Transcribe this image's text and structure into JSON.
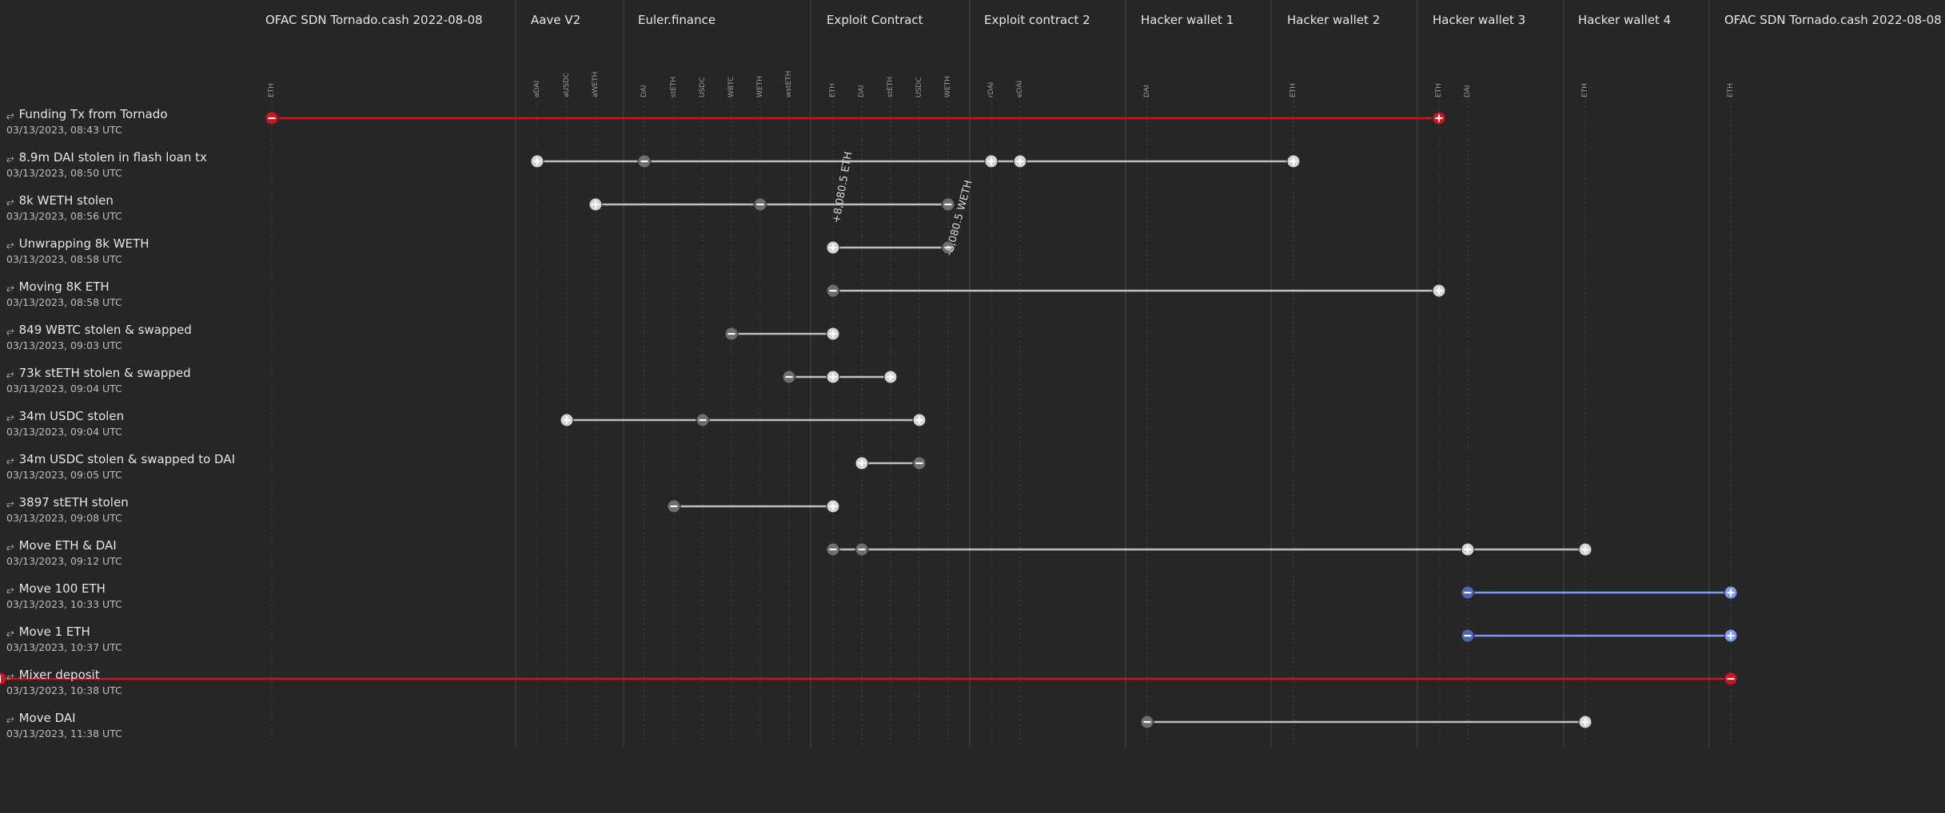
{
  "colors": {
    "background": "#262626",
    "grey_line": "#bfbfbf",
    "red": "#d0131f",
    "blue": "#7b9cf0",
    "blue_dark": "#4a67b8",
    "minus_grey": "#6e6e6e",
    "plus_grey": "#d4d4d4"
  },
  "groups": [
    {
      "id": "ofac1",
      "title": "OFAC SDN Tornado.cash 2022-08-08",
      "columns": [
        {
          "label": "ETH"
        }
      ]
    },
    {
      "id": "aave",
      "title": "Aave V2",
      "columns": [
        {
          "label": "aDAI"
        },
        {
          "label": "aUSDC"
        },
        {
          "label": "aWETH"
        }
      ]
    },
    {
      "id": "euler",
      "title": "Euler.finance",
      "columns": [
        {
          "label": "DAI"
        },
        {
          "label": "stETH"
        },
        {
          "label": "USDC"
        },
        {
          "label": "WBTC"
        },
        {
          "label": "WETH"
        },
        {
          "label": "wstETH"
        }
      ]
    },
    {
      "id": "exploit",
      "title": "Exploit Contract",
      "columns": [
        {
          "label": "ETH"
        },
        {
          "label": "DAI"
        },
        {
          "label": "stETH"
        },
        {
          "label": "USDC"
        },
        {
          "label": "WETH"
        }
      ]
    },
    {
      "id": "exploit2",
      "title": "Exploit contract 2",
      "columns": [
        {
          "label": "rDAI"
        },
        {
          "label": "eDAI"
        }
      ]
    },
    {
      "id": "hw1",
      "title": "Hacker wallet 1",
      "columns": [
        {
          "label": "DAI"
        }
      ]
    },
    {
      "id": "hw2",
      "title": "Hacker wallet 2",
      "columns": [
        {
          "label": "ETH"
        }
      ]
    },
    {
      "id": "hw3",
      "title": "Hacker wallet 3",
      "columns": [
        {
          "label": "ETH"
        },
        {
          "label": "DAI"
        }
      ]
    },
    {
      "id": "hw4",
      "title": "Hacker wallet 4",
      "columns": [
        {
          "label": "ETH"
        }
      ]
    },
    {
      "id": "ofac2",
      "title": "OFAC SDN Tornado.cash 2022-08-08",
      "columns": [
        {
          "label": "ETH"
        }
      ]
    }
  ],
  "transactions": [
    {
      "title": "Funding Tx from Tornado",
      "time": "03/13/2023, 08:43 UTC",
      "color": "red",
      "span": [
        0,
        19
      ],
      "markers": [
        {
          "col": 0,
          "type": "minus"
        },
        {
          "col": 19,
          "type": "plus"
        }
      ]
    },
    {
      "title": "8.9m DAI stolen in flash loan tx",
      "time": "03/13/2023, 08:50 UTC",
      "color": "grey",
      "span": [
        1,
        18
      ],
      "markers": [
        {
          "col": 1,
          "type": "plus"
        },
        {
          "col": 4,
          "type": "minus"
        },
        {
          "col": 15,
          "type": "plus"
        },
        {
          "col": 16,
          "type": "plus"
        },
        {
          "col": 18,
          "type": "plus"
        }
      ]
    },
    {
      "title": "8k WETH stolen",
      "time": "03/13/2023, 08:56 UTC",
      "color": "grey",
      "span": [
        3,
        14
      ],
      "markers": [
        {
          "col": 3,
          "type": "plus"
        },
        {
          "col": 8,
          "type": "minus"
        },
        {
          "col": 14,
          "type": "minus"
        }
      ]
    },
    {
      "title": "Unwrapping 8k WETH",
      "time": "03/13/2023, 08:58 UTC",
      "color": "grey",
      "span": [
        10,
        14
      ],
      "markers": [
        {
          "col": 10,
          "type": "plus"
        },
        {
          "col": 14,
          "type": "minus"
        }
      ]
    },
    {
      "title": "Moving 8K ETH",
      "time": "03/13/2023, 08:58 UTC",
      "color": "grey",
      "span": [
        10,
        19
      ],
      "markers": [
        {
          "col": 10,
          "type": "minus"
        },
        {
          "col": 19,
          "type": "plus"
        }
      ]
    },
    {
      "title": "849 WBTC stolen & swapped",
      "time": "03/13/2023, 09:03 UTC",
      "color": "grey",
      "span": [
        7,
        10
      ],
      "markers": [
        {
          "col": 7,
          "type": "minus"
        },
        {
          "col": 10,
          "type": "plus"
        }
      ]
    },
    {
      "title": "73k stETH stolen & swapped",
      "time": "03/13/2023, 09:04 UTC",
      "color": "grey",
      "span": [
        9,
        12
      ],
      "markers": [
        {
          "col": 9,
          "type": "minus"
        },
        {
          "col": 10,
          "type": "plus"
        },
        {
          "col": 12,
          "type": "plus"
        }
      ]
    },
    {
      "title": "34m USDC stolen",
      "time": "03/13/2023, 09:04 UTC",
      "color": "grey",
      "span": [
        2,
        13
      ],
      "markers": [
        {
          "col": 2,
          "type": "plus"
        },
        {
          "col": 6,
          "type": "minus"
        },
        {
          "col": 13,
          "type": "plus"
        }
      ]
    },
    {
      "title": "34m USDC stolen & swapped to DAI",
      "time": "03/13/2023, 09:05 UTC",
      "color": "grey",
      "span": [
        11,
        13
      ],
      "markers": [
        {
          "col": 11,
          "type": "plus"
        },
        {
          "col": 13,
          "type": "minus"
        }
      ]
    },
    {
      "title": "3897 stETH stolen",
      "time": "03/13/2023, 09:08 UTC",
      "color": "grey",
      "span": [
        5,
        10
      ],
      "markers": [
        {
          "col": 5,
          "type": "minus"
        },
        {
          "col": 10,
          "type": "plus"
        }
      ]
    },
    {
      "title": "Move ETH & DAI",
      "time": "03/13/2023, 09:12 UTC",
      "color": "grey",
      "span": [
        10,
        21
      ],
      "markers": [
        {
          "col": 10,
          "type": "minus"
        },
        {
          "col": 11,
          "type": "minus"
        },
        {
          "col": 20,
          "type": "plus"
        },
        {
          "col": 21,
          "type": "plus"
        }
      ]
    },
    {
      "title": "Move 100 ETH",
      "time": "03/13/2023, 10:33 UTC",
      "color": "blue",
      "span": [
        20,
        22
      ],
      "markers": [
        {
          "col": 20,
          "type": "minus"
        },
        {
          "col": 22,
          "type": "plus"
        }
      ]
    },
    {
      "title": "Move 1 ETH",
      "time": "03/13/2023, 10:37 UTC",
      "color": "blue",
      "span": [
        20,
        22
      ],
      "markers": [
        {
          "col": 20,
          "type": "minus"
        },
        {
          "col": 22,
          "type": "plus"
        }
      ]
    },
    {
      "title": "Mixer deposit",
      "time": "03/13/2023, 10:38 UTC",
      "color": "red",
      "span": [
        22,
        23
      ],
      "markers": [
        {
          "col": 22,
          "type": "minus"
        },
        {
          "col": 23,
          "type": "plus"
        }
      ]
    },
    {
      "title": "Move DAI",
      "time": "03/13/2023, 11:38 UTC",
      "color": "grey",
      "span": [
        17,
        21
      ],
      "markers": [
        {
          "col": 17,
          "type": "minus"
        },
        {
          "col": 21,
          "type": "plus"
        }
      ]
    }
  ],
  "annotations": [
    {
      "text": "+8,080.5 ETH",
      "col": 10
    },
    {
      "text": "-8,080.5 WETH",
      "col": 14
    }
  ]
}
